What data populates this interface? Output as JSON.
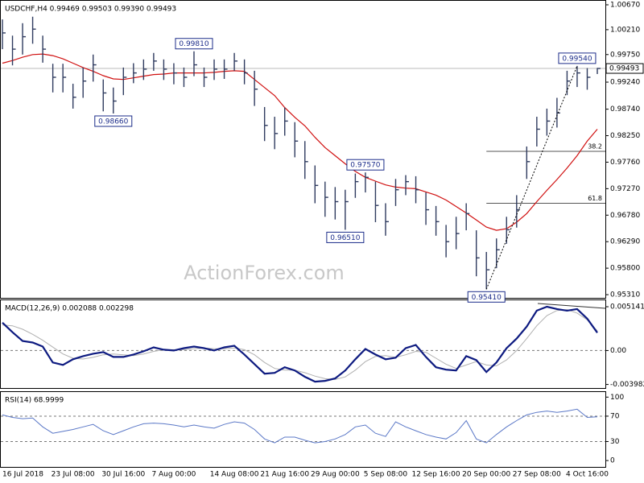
{
  "chart_data": [
    {
      "type": "ohlc",
      "title": "USDCHF,H4  0.99469 0.99503 0.99390 0.99493",
      "watermark": "ActionForex.com",
      "color": "#2f3b5f",
      "categories": [
        "16 Jul 2018",
        null,
        null,
        null,
        null,
        null,
        null,
        "23 Jul 08:00",
        null,
        null,
        null,
        null,
        "30 Jul 16:00",
        null,
        null,
        null,
        null,
        "7 Aug 00:00",
        null,
        null,
        null,
        null,
        null,
        "14 Aug 08:00",
        null,
        null,
        null,
        null,
        "21 Aug 16:00",
        null,
        null,
        null,
        null,
        "29 Aug 00:00",
        null,
        null,
        null,
        null,
        "5 Sep 08:00",
        null,
        null,
        null,
        null,
        "12 Sep 16:00",
        null,
        null,
        null,
        null,
        "20 Sep 00:00",
        null,
        null,
        null,
        null,
        "27 Sep 08:00",
        null,
        null,
        null,
        null,
        "4 Oct 16:00",
        null
      ],
      "high": [
        1.004,
        1.001,
        1.0033,
        1.0045,
        1.001,
        0.9958,
        0.9958,
        0.9921,
        0.9951,
        0.9975,
        0.9929,
        0.9914,
        0.9951,
        0.9959,
        0.9966,
        0.9978,
        0.9966,
        0.9959,
        0.9951,
        0.9981,
        0.9951,
        0.9966,
        0.9966,
        0.9978,
        0.9966,
        0.9945,
        0.9878,
        0.986,
        0.9877,
        0.985,
        0.9815,
        0.977,
        0.974,
        0.973,
        0.9725,
        0.9755,
        0.9757,
        0.974,
        0.97,
        0.9745,
        0.9752,
        0.975,
        0.972,
        0.9695,
        0.966,
        0.9675,
        0.97,
        0.965,
        0.961,
        0.9635,
        0.9675,
        0.9715,
        0.9805,
        0.986,
        0.9875,
        0.9895,
        0.9945,
        0.9954,
        0.995,
        0.99503
      ],
      "low": [
        0.9985,
        0.9955,
        0.9975,
        0.9995,
        0.996,
        0.9905,
        0.9905,
        0.9875,
        0.9895,
        0.9925,
        0.987,
        0.9866,
        0.99,
        0.9922,
        0.9928,
        0.9945,
        0.9928,
        0.992,
        0.9915,
        0.9935,
        0.9915,
        0.9928,
        0.993,
        0.9945,
        0.992,
        0.988,
        0.9815,
        0.98,
        0.9825,
        0.9785,
        0.9745,
        0.97,
        0.9675,
        0.967,
        0.9651,
        0.971,
        0.972,
        0.9665,
        0.964,
        0.9695,
        0.9715,
        0.97,
        0.966,
        0.964,
        0.96,
        0.9615,
        0.965,
        0.9565,
        0.9541,
        0.958,
        0.9625,
        0.9655,
        0.9745,
        0.9805,
        0.9825,
        0.984,
        0.99,
        0.9915,
        0.991,
        0.9939
      ],
      "close": [
        1.0015,
        0.9985,
        1.0008,
        1.0022,
        0.9985,
        0.9933,
        0.9933,
        0.9896,
        0.9926,
        0.9956,
        0.9904,
        0.9889,
        0.9933,
        0.9941,
        0.9948,
        0.9963,
        0.9948,
        0.9941,
        0.9933,
        0.9956,
        0.9933,
        0.9948,
        0.9948,
        0.9963,
        0.9941,
        0.9911,
        0.9844,
        0.9829,
        0.9852,
        0.9815,
        0.9777,
        0.9733,
        0.9711,
        0.9703,
        0.9703,
        0.974,
        0.9748,
        0.9696,
        0.9666,
        0.9725,
        0.974,
        0.9725,
        0.9688,
        0.9666,
        0.9629,
        0.9644,
        0.9681,
        0.9599,
        0.9577,
        0.9614,
        0.9651,
        0.9688,
        0.9777,
        0.9837,
        0.9852,
        0.9867,
        0.9926,
        0.9941,
        0.9933,
        0.99493
      ],
      "ma": {
        "color": "#d01010",
        "values": [
          0.9959,
          0.9964,
          0.997,
          0.9975,
          0.9976,
          0.9973,
          0.9967,
          0.9959,
          0.9951,
          0.9944,
          0.9936,
          0.993,
          0.9929,
          0.9932,
          0.9935,
          0.9938,
          0.9939,
          0.9941,
          0.9941,
          0.9941,
          0.9941,
          0.9942,
          0.9944,
          0.9945,
          0.9944,
          0.9929,
          0.9914,
          0.9899,
          0.9877,
          0.9859,
          0.9843,
          0.9822,
          0.9803,
          0.9788,
          0.9773,
          0.9759,
          0.9748,
          0.9741,
          0.9734,
          0.973,
          0.9728,
          0.9727,
          0.9721,
          0.9715,
          0.9706,
          0.9694,
          0.9682,
          0.9669,
          0.9656,
          0.965,
          0.9653,
          0.9665,
          0.9681,
          0.9703,
          0.9724,
          0.9744,
          0.9765,
          0.9788,
          0.9815,
          0.9837
        ]
      },
      "ylim": [
        0.95251,
        1.00744
      ],
      "yticks": [
        {
          "value": 1.0067,
          "label": "1.00670"
        },
        {
          "value": 1.0021,
          "label": "1.00210"
        },
        {
          "value": 0.9975,
          "label": "0.99750"
        },
        {
          "value": 0.9924,
          "label": "0.99240"
        },
        {
          "value": 0.9874,
          "label": "0.98740"
        },
        {
          "value": 0.9825,
          "label": "0.98250"
        },
        {
          "value": 0.9776,
          "label": "0.97760"
        },
        {
          "value": 0.9727,
          "label": "0.97270"
        },
        {
          "value": 0.9678,
          "label": "0.96780"
        },
        {
          "value": 0.9629,
          "label": "0.96290"
        },
        {
          "value": 0.958,
          "label": "0.95800"
        },
        {
          "value": 0.9531,
          "label": "0.95310"
        }
      ],
      "last": {
        "value": 0.99493,
        "label": "0.99493"
      },
      "annotations": [
        {
          "value": 0.9866,
          "label": "0.98660"
        },
        {
          "value": 0.9981,
          "label": "0.99810"
        },
        {
          "value": 0.9651,
          "label": "0.96510"
        },
        {
          "value": 0.9757,
          "label": "0.97570"
        },
        {
          "value": 0.9541,
          "label": "0.95410"
        },
        {
          "value": 0.9954,
          "label": "0.99540"
        }
      ],
      "levels": [
        {
          "value": 0.9796,
          "label": "38.2"
        },
        {
          "value": 0.97,
          "label": "61.8"
        }
      ]
    },
    {
      "type": "line",
      "title": "MACD(12,26,9)  0.002088  0.002298",
      "series": [
        {
          "color": "#0d1a80",
          "values": [
            0.003276,
            0.002153,
            0.001123,
            0.000936,
            0.000468,
            -0.001404,
            -0.001685,
            -0.00103,
            -0.000655,
            -0.000374,
            -0.000187,
            -0.000749,
            -0.000749,
            -0.000468,
            -9.4e-05,
            0.000374,
            9.4e-05,
            0,
            0.000281,
            0.000468,
            0.000281,
            0,
            0.000374,
            0.000562,
            -0.000468,
            -0.001591,
            -0.002714,
            -0.002621,
            -0.001966,
            -0.00234,
            -0.003089,
            -0.00365,
            -0.003557,
            -0.003276,
            -0.00234,
            -0.00103,
            0.000187,
            -0.000468,
            -0.00103,
            -0.000842,
            0.000281,
            0.000655,
            -0.000749,
            -0.001966,
            -0.002246,
            -0.00234,
            -0.000655,
            -0.001123,
            -0.002527,
            -0.001404,
            0.000281,
            0.001404,
            0.002808,
            0.00468,
            0.005141,
            0.004867,
            0.00468,
            0.004867,
            0.003744,
            0.002088
          ]
        },
        {
          "color": "#b0b0b0",
          "values": [
            0.003,
            0.0029,
            0.0025,
            0.0019,
            0.0012,
            0.0004,
            -0.0004,
            -0.0009,
            -0.001,
            -0.0008,
            -0.0005,
            -0.0004,
            -0.0005,
            -0.0006,
            -0.0004,
            -0.0001,
            0.0001,
            0.0001,
            0.0001,
            0.0002,
            0.0003,
            0.0002,
            0.0002,
            0.0003,
            0.0001,
            -0.0005,
            -0.0014,
            -0.0021,
            -0.0023,
            -0.0023,
            -0.0026,
            -0.003,
            -0.0033,
            -0.0034,
            -0.0031,
            -0.0023,
            -0.0013,
            -0.0007,
            -0.0006,
            -0.0008,
            -0.0005,
            -0.0001,
            -0.0002,
            -0.0009,
            -0.0016,
            -0.0021,
            -0.0017,
            -0.0013,
            -0.0017,
            -0.0018,
            -0.0011,
            0,
            0.0014,
            0.0029,
            0.0041,
            0.0047,
            0.0048,
            0.0044,
            0.0036,
            0.002298
          ]
        }
      ],
      "ylim": [
        -0.0044,
        0.0059
      ],
      "yticks": [
        0.005141,
        {
          "value": 0,
          "label": "0.00"
        },
        -0.003982
      ],
      "levels": [
        0
      ]
    },
    {
      "type": "line",
      "title": "RSI(14) 68.9999",
      "color": "#5b78c7",
      "values": [
        72,
        68,
        66,
        67,
        53,
        43,
        46,
        49,
        53,
        57,
        47,
        41,
        47,
        53,
        58,
        59,
        58,
        56,
        53,
        56,
        53,
        51,
        57,
        61,
        59,
        49,
        34,
        28,
        37,
        37,
        32,
        28,
        30,
        34,
        41,
        53,
        56,
        43,
        38,
        61,
        53,
        47,
        41,
        37,
        34,
        44,
        63,
        34,
        28,
        41,
        53,
        63,
        72,
        76,
        78,
        76,
        78,
        81,
        68,
        68.9999
      ],
      "ylim": [
        -10,
        108
      ],
      "yticks": [
        100,
        70,
        30,
        0
      ],
      "levels": [
        70,
        30
      ]
    }
  ]
}
